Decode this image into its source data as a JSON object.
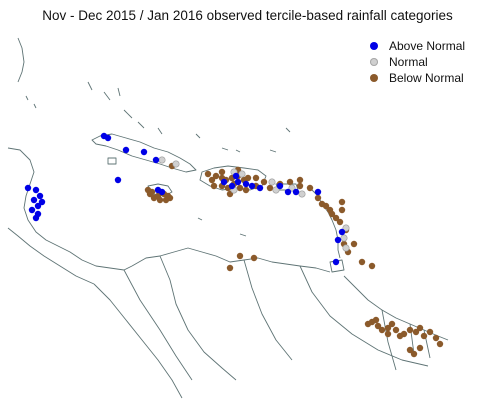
{
  "title": "Nov - Dec 2015 / Jan 2016 observed tercile-based rainfall categories",
  "colors": {
    "above": "#0000e6",
    "normal": "#d0d0d0",
    "below": "#8b5a2b",
    "coast": "#5f7475"
  },
  "legend": [
    {
      "label": "Above Normal",
      "category": "above"
    },
    {
      "label": "Normal",
      "category": "normal"
    },
    {
      "label": "Below Normal",
      "category": "below"
    }
  ],
  "station_counts": {
    "above": 31,
    "normal": 12,
    "below": 77
  }
}
